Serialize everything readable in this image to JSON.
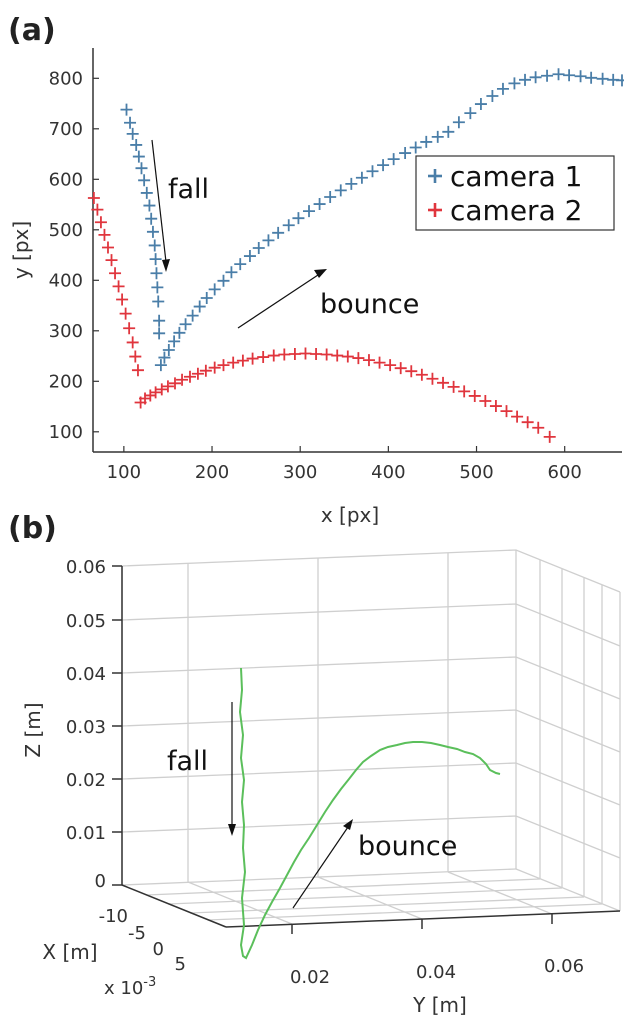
{
  "panels": {
    "a": "(a)",
    "b": "(b)"
  },
  "chart_data": [
    {
      "type": "scatter",
      "panel": "(a)",
      "xlabel": "x [px]",
      "ylabel": "y [px]",
      "xlim": [
        65,
        665
      ],
      "ylim": [
        60,
        860
      ],
      "xticks": [
        100,
        200,
        300,
        400,
        500,
        600
      ],
      "yticks": [
        100,
        200,
        300,
        400,
        500,
        600,
        700,
        800
      ],
      "legend_position": "top-right",
      "annotations": [
        {
          "text": "fall"
        },
        {
          "text": "bounce"
        }
      ],
      "series": [
        {
          "name": "camera 1",
          "color": "#4a7ea8",
          "marker": "+",
          "x": [
            103,
            107,
            110,
            114,
            117,
            120,
            123,
            126,
            129,
            131,
            133,
            135,
            136,
            137,
            138,
            139,
            140,
            140,
            142,
            146,
            151,
            157,
            163,
            170,
            178,
            186,
            194,
            203,
            213,
            222,
            232,
            243,
            253,
            264,
            275,
            287,
            298,
            310,
            322,
            334,
            346,
            358,
            370,
            382,
            394,
            406,
            419,
            431,
            443,
            456,
            468,
            480,
            493,
            505,
            518,
            530,
            543,
            555,
            567,
            580,
            593,
            605,
            618,
            630,
            643,
            655,
            665
          ],
          "y": [
            738,
            712,
            690,
            668,
            645,
            622,
            598,
            573,
            548,
            522,
            496,
            469,
            442,
            414,
            386,
            358,
            320,
            295,
            232,
            247,
            262,
            279,
            296,
            313,
            330,
            348,
            365,
            382,
            399,
            416,
            432,
            448,
            464,
            479,
            494,
            509,
            523,
            537,
            551,
            565,
            578,
            591,
            603,
            616,
            628,
            640,
            652,
            663,
            674,
            684,
            694,
            713,
            731,
            749,
            765,
            779,
            790,
            797,
            802,
            805,
            808,
            806,
            804,
            801,
            799,
            797,
            796
          ]
        },
        {
          "name": "camera 2",
          "color": "#e0353d",
          "marker": "+",
          "x": [
            66,
            70,
            74,
            78,
            82,
            86,
            90,
            94,
            98,
            102,
            106,
            110,
            113,
            116,
            119,
            124,
            130,
            136,
            143,
            150,
            158,
            166,
            175,
            184,
            193,
            203,
            213,
            224,
            235,
            246,
            258,
            270,
            282,
            294,
            306,
            318,
            330,
            342,
            354,
            366,
            378,
            390,
            402,
            414,
            426,
            438,
            450,
            462,
            474,
            486,
            498,
            510,
            522,
            534,
            546,
            558,
            570,
            583
          ],
          "y": [
            563,
            540,
            515,
            490,
            465,
            440,
            414,
            388,
            362,
            334,
            305,
            277,
            249,
            222,
            158,
            166,
            172,
            178,
            184,
            190,
            196,
            203,
            209,
            215,
            221,
            227,
            232,
            237,
            241,
            245,
            248,
            251,
            253,
            254,
            255,
            254,
            253,
            251,
            249,
            246,
            242,
            237,
            232,
            226,
            220,
            213,
            205,
            197,
            189,
            180,
            171,
            161,
            151,
            141,
            130,
            119,
            108,
            90
          ]
        }
      ]
    },
    {
      "type": "line",
      "panel": "(b)",
      "projection": "3d",
      "xlabel": "X [m]",
      "ylabel": "Y [m]",
      "zlabel": "Z [m]",
      "x_scale_note": "x 10",
      "x_scale_exp": "-3",
      "xticks": [
        "-10",
        "-5",
        "0",
        "5"
      ],
      "yticks": [
        "0.02",
        "0.04",
        "0.06"
      ],
      "zticks": [
        "0",
        "0.01",
        "0.02",
        "0.03",
        "0.04",
        "0.05",
        "0.06"
      ],
      "zlim": [
        0,
        0.06
      ],
      "grid": true,
      "annotations": [
        {
          "text": "fall"
        },
        {
          "text": "bounce"
        }
      ],
      "series": [
        {
          "name": "trajectory",
          "color": "#5bbf5b"
        }
      ]
    }
  ]
}
